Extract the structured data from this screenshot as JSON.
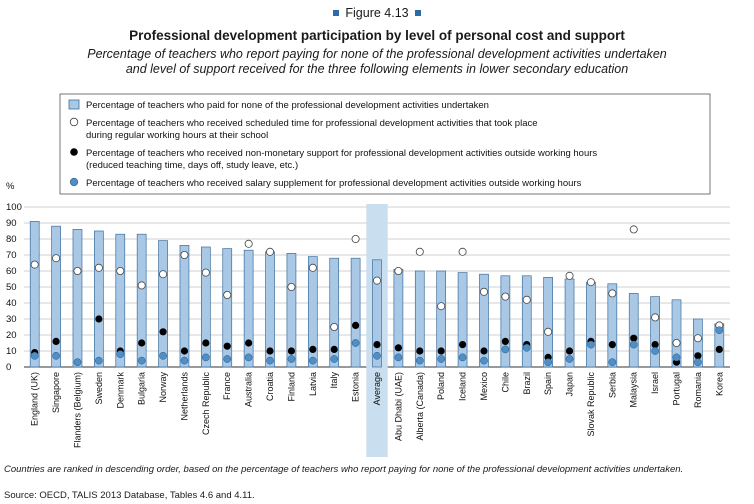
{
  "figure_label": "Figure 4.13",
  "title": "Professional development participation by level of personal cost and support",
  "subtitle_line1": "Percentage of teachers who report paying for none of the professional development activities undertaken",
  "subtitle_line2": "and level of support received for the three following elements in lower secondary education",
  "legend": [
    {
      "marker": "bar",
      "lines": [
        "Percentage of teachers who paid for none of the professional development activities undertaken"
      ]
    },
    {
      "marker": "circle-white",
      "lines": [
        "Percentage of teachers who received scheduled time for professional development activities that took place",
        "during regular working hours at their school"
      ]
    },
    {
      "marker": "circle-black",
      "lines": [
        "Percentage of teachers who received non-monetary support for professional development activities outside working hours",
        "(reduced teaching time, days off, study leave, etc.)"
      ]
    },
    {
      "marker": "circle-blue",
      "lines": [
        "Percentage of teachers who received salary supplement for professional development activities outside working hours"
      ]
    }
  ],
  "note": "Countries are ranked in descending order, based on the percentage of teachers who report paying for none of the professional development activities undertaken.",
  "source": "Source: OECD, TALIS 2013 Database, Tables 4.6 and 4.11.",
  "colors": {
    "bar": "#a9c8e6",
    "bar_stroke": "#3d6f9c",
    "highlight": "#c9dff0",
    "blue_dot": "#4f8fc6",
    "grid": "#a0a0a0"
  },
  "chart_data": {
    "type": "bar",
    "ylabel": "%",
    "ylim": [
      0,
      100
    ],
    "yticks": [
      0,
      10,
      20,
      30,
      40,
      50,
      60,
      70,
      80,
      90,
      100
    ],
    "highlight_category": "Average",
    "categories": [
      "England (UK)",
      "Singapore",
      "Flanders (Belgium)",
      "Sweden",
      "Denmark",
      "Bulgaria",
      "Norway",
      "Netherlands",
      "Czech Republic",
      "France",
      "Australia",
      "Croatia",
      "Finland",
      "Latvia",
      "Italy",
      "Estonia",
      "Average",
      "Abu Dhabi (UAE)",
      "Alberta (Canada)",
      "Poland",
      "Iceland",
      "Mexico",
      "Chile",
      "Brazil",
      "Spain",
      "Japan",
      "Slovak Republic",
      "Serbia",
      "Malaysia",
      "Israel",
      "Portugal",
      "Romania",
      "Korea"
    ],
    "series": [
      {
        "name": "Percentage of teachers who paid for none of the professional development activities undertaken",
        "kind": "bar",
        "values": [
          91,
          88,
          86,
          85,
          83,
          83,
          79,
          76,
          75,
          74,
          73,
          72,
          71,
          69,
          68,
          68,
          67,
          61,
          60,
          60,
          59,
          58,
          57,
          57,
          56,
          55,
          53,
          52,
          46,
          44,
          42,
          30,
          27
        ]
      },
      {
        "name": "Percentage of teachers who received scheduled time for professional development activities that took place during regular working hours at their school",
        "kind": "white-dot",
        "values": [
          64,
          68,
          60,
          62,
          60,
          51,
          58,
          70,
          59,
          45,
          77,
          72,
          50,
          62,
          25,
          80,
          54,
          60,
          72,
          38,
          72,
          47,
          44,
          42,
          22,
          57,
          53,
          46,
          86,
          31,
          15,
          18,
          26
        ]
      },
      {
        "name": "Percentage of teachers who received non-monetary support for professional development activities outside working hours (reduced teaching time, days off, study leave, etc.)",
        "kind": "black-dot",
        "values": [
          9,
          16,
          3,
          30,
          10,
          15,
          22,
          10,
          15,
          13,
          15,
          10,
          10,
          11,
          11,
          26,
          14,
          12,
          10,
          10,
          14,
          10,
          16,
          14,
          6,
          10,
          16,
          14,
          18,
          14,
          3,
          7,
          11
        ]
      },
      {
        "name": "Percentage of teachers who received salary supplement for professional development activities outside working hours",
        "kind": "blue-dot",
        "values": [
          7,
          7,
          3,
          4,
          8,
          4,
          7,
          4,
          6,
          5,
          6,
          4,
          5,
          4,
          5,
          15,
          7,
          6,
          4,
          5,
          6,
          4,
          11,
          12,
          3,
          5,
          14,
          3,
          14,
          10,
          6,
          3,
          23
        ]
      }
    ]
  }
}
